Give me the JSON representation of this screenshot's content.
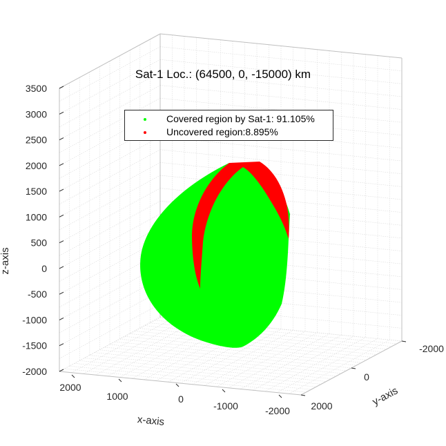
{
  "chart_data": {
    "type": "scatter",
    "title": "Sat-1 Loc.: (64500, 0, -15000) km",
    "xlabel": "x-axis",
    "ylabel": "y-axis",
    "zlabel": "z-axis",
    "xlim": [
      -2000,
      2000
    ],
    "ylim": [
      -2000,
      2000
    ],
    "zlim": [
      -2000,
      3500
    ],
    "x_ticks": [
      "2000",
      "1000",
      "0",
      "-1000",
      "-2000"
    ],
    "y_ticks": [
      "-2000",
      "0",
      "2000"
    ],
    "z_ticks": [
      "3500",
      "3000",
      "2500",
      "2000",
      "1500",
      "1000",
      "500",
      "0",
      "-500",
      "-1000",
      "-1500",
      "-2000"
    ],
    "grid": true,
    "legend_position": "top",
    "series": [
      {
        "name": "Covered region by Sat-1: 91.105%",
        "color": "#00ff00"
      },
      {
        "name": "Uncovered region:8.895%",
        "color": "#ff0000"
      }
    ]
  }
}
